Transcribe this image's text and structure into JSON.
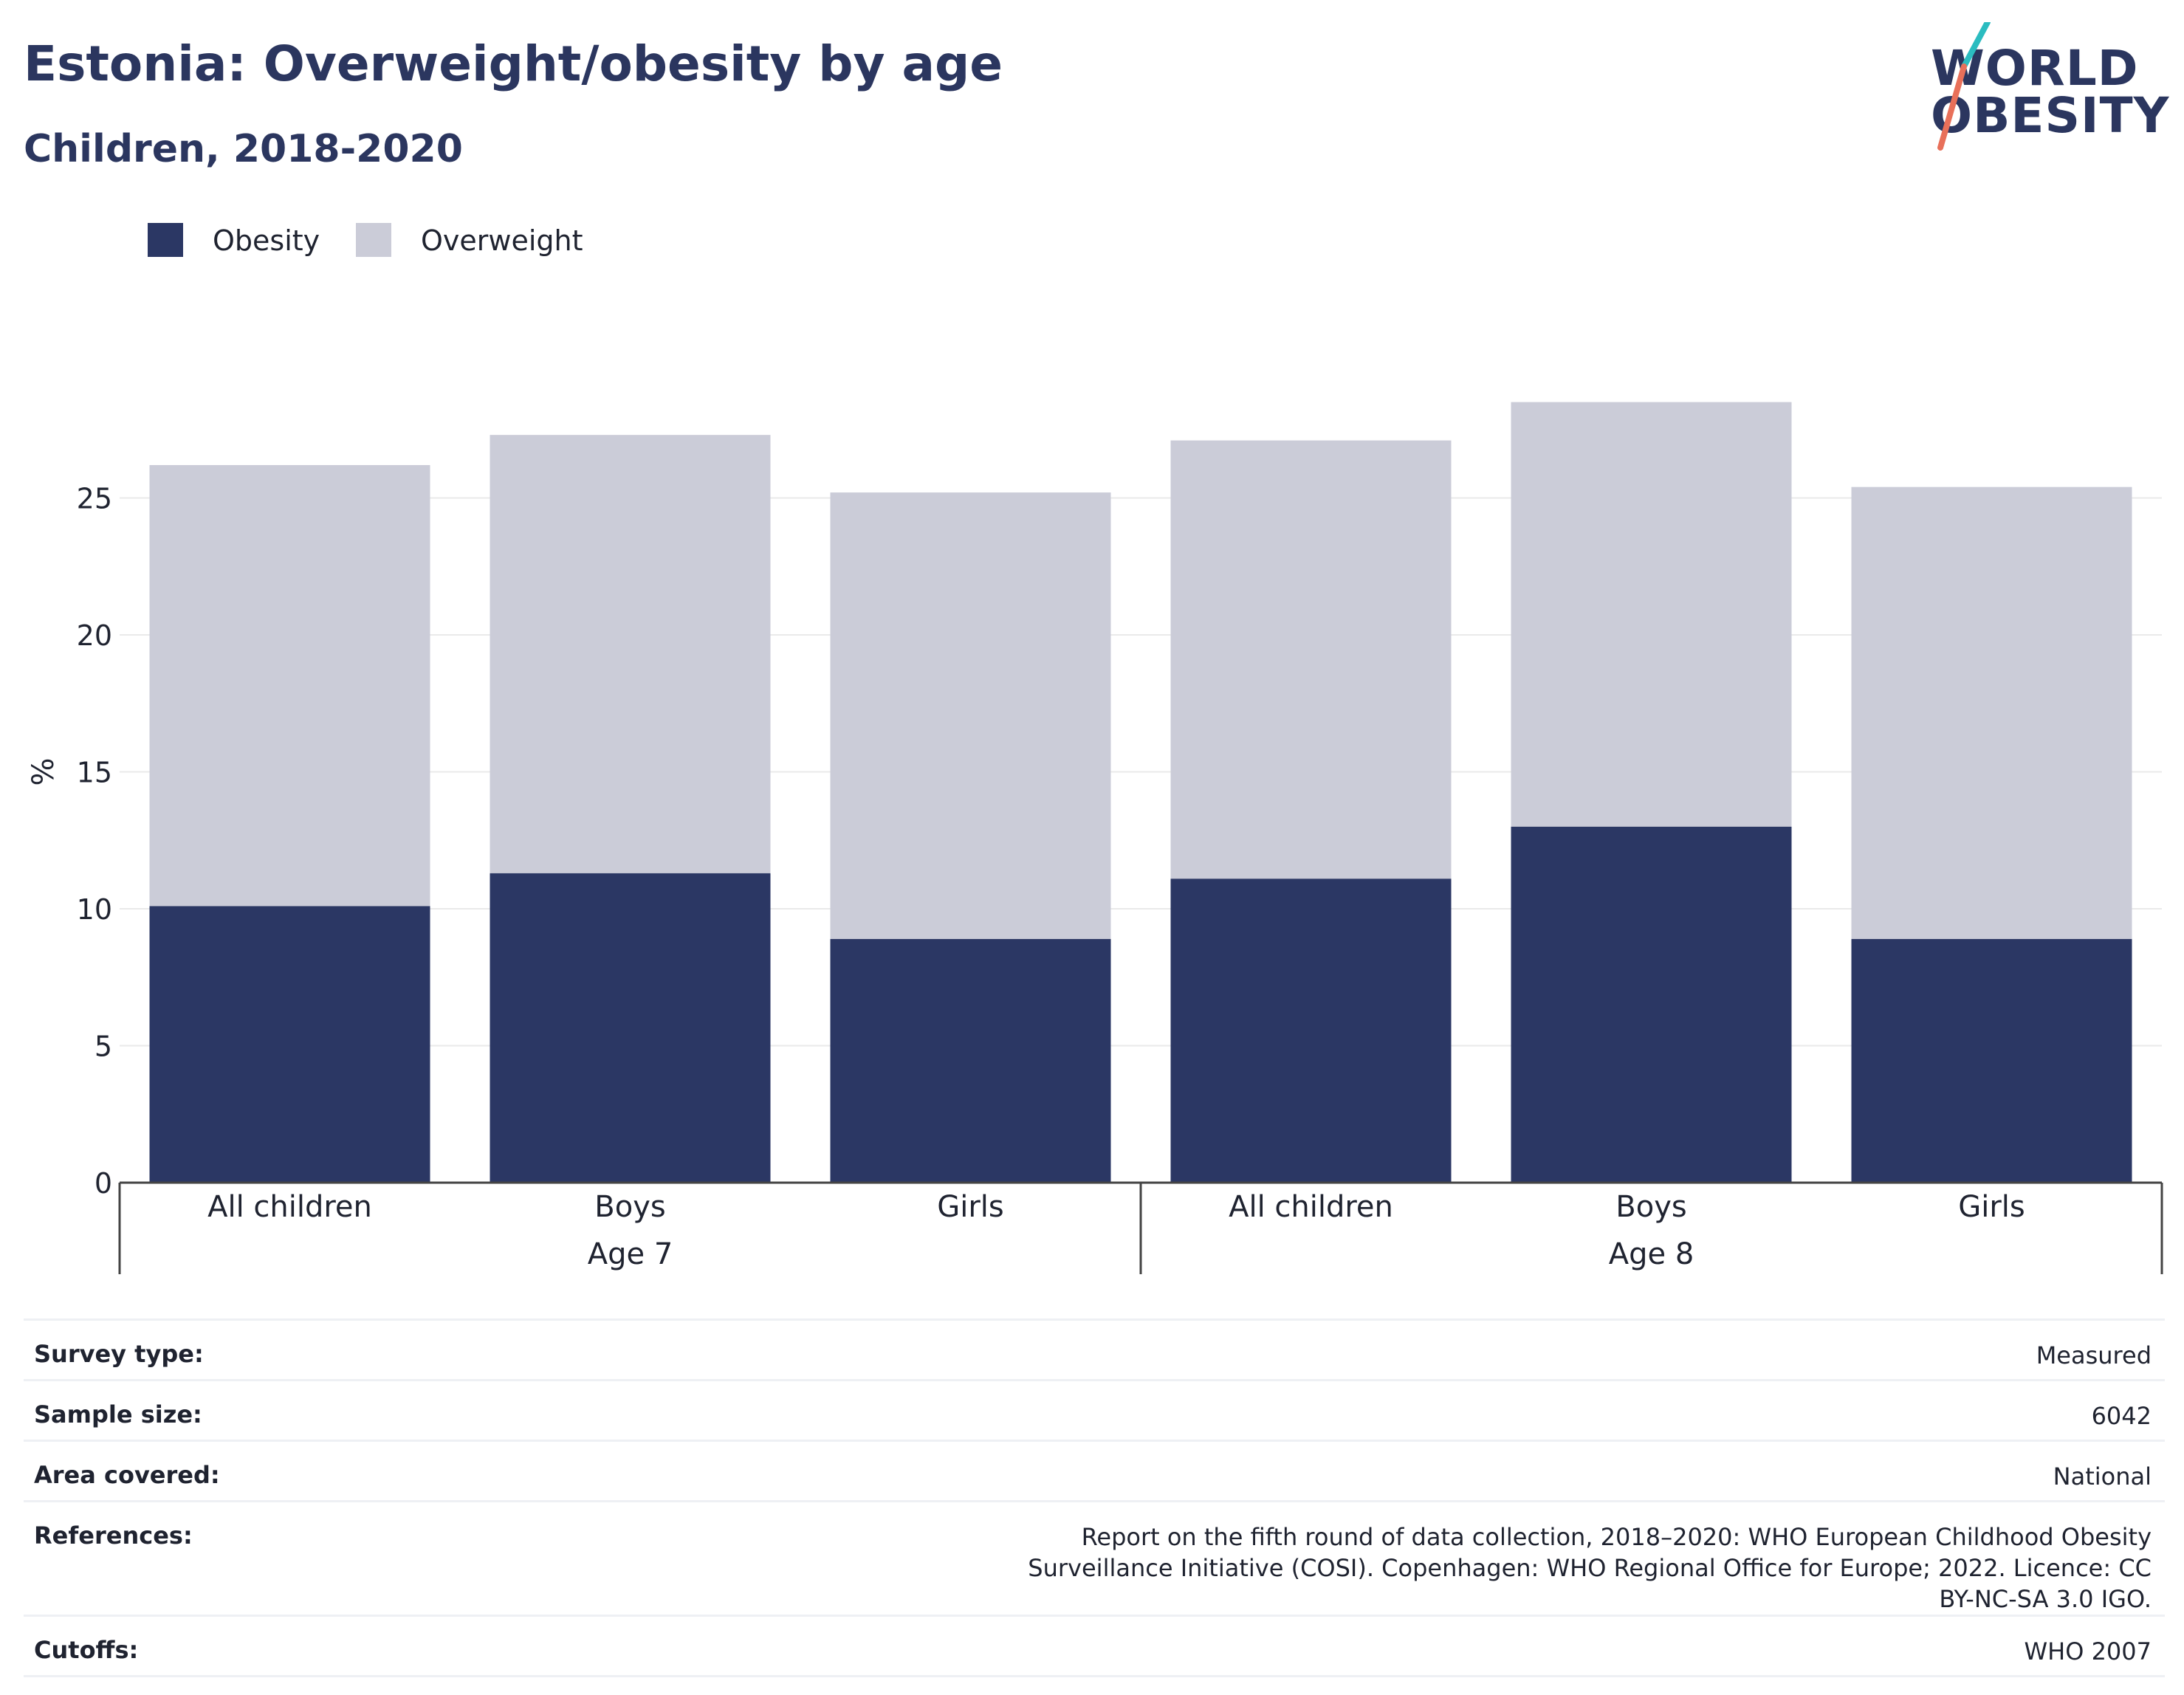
{
  "header": {
    "title": "Estonia: Overweight/obesity by age",
    "subtitle": "Children, 2018-2020"
  },
  "logo": {
    "line1": "WORLD",
    "line2": "OBESITY"
  },
  "legend": {
    "items": [
      {
        "label": "Obesity",
        "color": "#2b3764"
      },
      {
        "label": "Overweight",
        "color": "#cbccd8"
      }
    ]
  },
  "chart_data": {
    "type": "bar",
    "stacked": true,
    "ylabel": "%",
    "ylim": [
      0,
      30
    ],
    "yticks": [
      0,
      5,
      10,
      15,
      20,
      25
    ],
    "grid": true,
    "legend_position": "top-left",
    "groups": [
      {
        "label": "Age 7",
        "categories": [
          "All children",
          "Boys",
          "Girls"
        ]
      },
      {
        "label": "Age 8",
        "categories": [
          "All children",
          "Boys",
          "Girls"
        ]
      }
    ],
    "series": [
      {
        "name": "Obesity",
        "color": "#2b3764",
        "values": [
          10.1,
          11.3,
          8.9,
          11.1,
          13.0,
          8.9
        ]
      },
      {
        "name": "Overweight",
        "color": "#cbccd8",
        "values": [
          16.1,
          16.0,
          16.3,
          16.0,
          15.5,
          16.5
        ]
      }
    ]
  },
  "info": {
    "rows": [
      {
        "key": "Survey type:",
        "value": "Measured"
      },
      {
        "key": "Sample size:",
        "value": "6042"
      },
      {
        "key": "Area covered:",
        "value": "National"
      },
      {
        "key": "References:",
        "value": "Report on the fifth round of data collection, 2018–2020: WHO European Childhood Obesity Surveillance Initiative (COSI). Copenhagen: WHO Regional Office for Europe; 2022. Licence: CC BY-NC-SA 3.0 IGO."
      },
      {
        "key": "Cutoffs:",
        "value": "WHO 2007"
      }
    ]
  }
}
